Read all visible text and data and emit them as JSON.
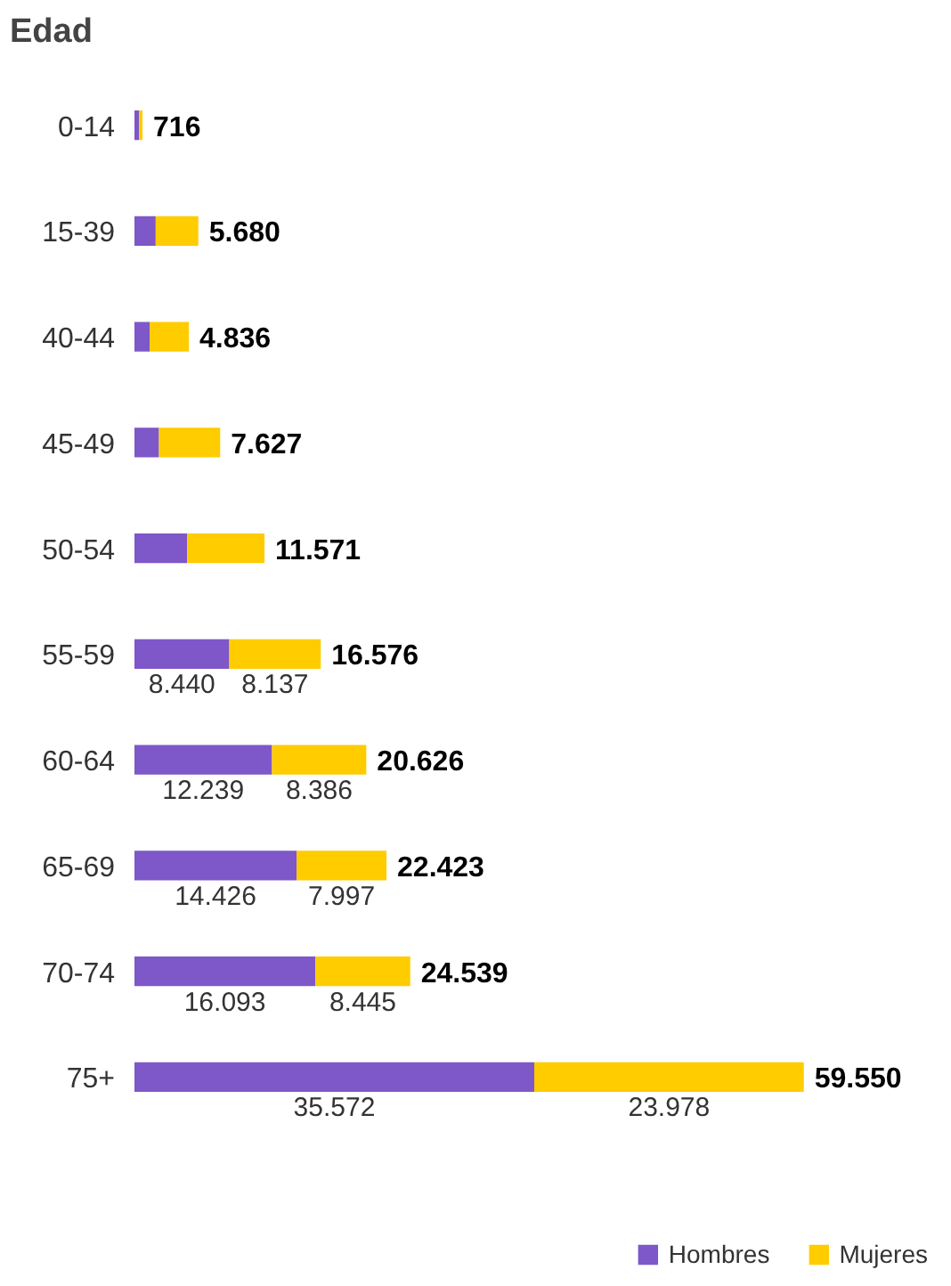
{
  "chart_data": {
    "type": "bar",
    "orientation": "horizontal",
    "stacked": true,
    "title": "Edad",
    "categories": [
      "0-14",
      "15-39",
      "40-44",
      "45-49",
      "50-54",
      "55-59",
      "60-64",
      "65-69",
      "70-74",
      "75+"
    ],
    "series": [
      {
        "name": "Hombres",
        "color": "#7e57c9",
        "values": [
          400,
          1890,
          1350,
          2180,
          4680,
          8440,
          12239,
          14426,
          16093,
          35572
        ],
        "value_labels": [
          null,
          null,
          null,
          null,
          null,
          "8.440",
          "12.239",
          "14.426",
          "16.093",
          "35.572"
        ]
      },
      {
        "name": "Mujeres",
        "color": "#ffcc00",
        "values": [
          316,
          3790,
          3486,
          5447,
          6891,
          8137,
          8386,
          7997,
          8445,
          23978
        ],
        "value_labels": [
          null,
          null,
          null,
          null,
          null,
          "8.137",
          "8.386",
          "7.997",
          "8.445",
          "23.978"
        ]
      }
    ],
    "totals": [
      "716",
      "5.680",
      "4.836",
      "7.627",
      "11.571",
      "16.576",
      "20.626",
      "22.423",
      "24.539",
      "59.550"
    ],
    "tick_labels": "y",
    "grid": false,
    "legend": "bottom right"
  }
}
